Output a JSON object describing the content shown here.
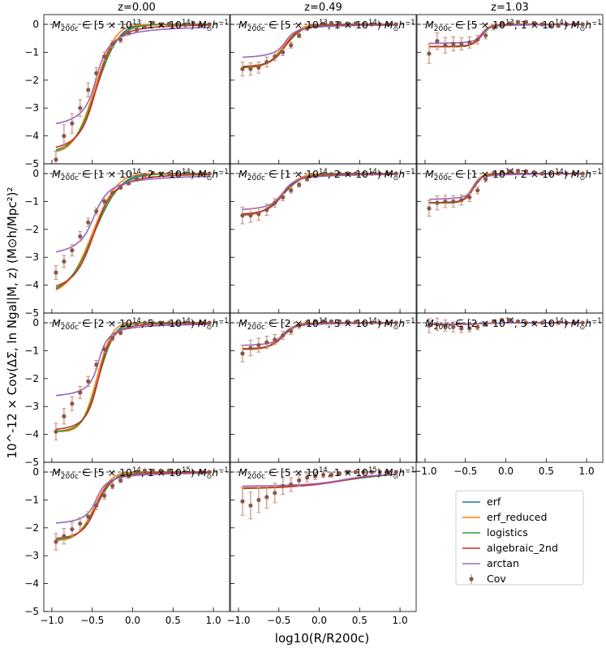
{
  "chart_data": {
    "type": "line",
    "xlabel": "log10(R/R200c)",
    "ylabel": "10^-12 × Cov(ΔΣ, ln Ngal|M, z) (M⊙h/Mpc²)²",
    "xlim": [
      -1.1,
      1.2
    ],
    "ylim": [
      -5,
      0.35
    ],
    "xticks": [
      -1.0,
      -0.5,
      0.0,
      0.5,
      1.0
    ],
    "xtick_labels": [
      "−1.0",
      "−0.5",
      "0.0",
      "0.5",
      "1.0"
    ],
    "yticks": [
      -5,
      -4,
      -3,
      -2,
      -1,
      0
    ],
    "ytick_labels": [
      "−5",
      "−4",
      "−3",
      "−2",
      "−1",
      "0"
    ],
    "reference_line_y": 0,
    "grid": false,
    "legend_position": "bottom-right",
    "columns": [
      "z=0.00",
      "z=0.49",
      "z=1.03"
    ],
    "series_meta": [
      {
        "name": "erf",
        "color": "#1f77b4"
      },
      {
        "name": "erf_reduced",
        "color": "#ff7f0e"
      },
      {
        "name": "logistics",
        "color": "#2ca02c"
      },
      {
        "name": "algebraic_2nd",
        "color": "#d62728"
      },
      {
        "name": "arctan",
        "color": "#9467bd"
      }
    ],
    "points_meta": {
      "name": "Cov",
      "color": "#8c564b",
      "errcolor": "#c8907a"
    },
    "x": [
      -0.95,
      -0.85,
      -0.75,
      -0.65,
      -0.55,
      -0.45,
      -0.35,
      -0.25,
      -0.15,
      -0.05,
      0.05,
      0.15,
      0.25,
      0.35,
      0.45,
      0.55,
      0.65,
      0.75,
      0.85,
      0.95
    ],
    "panels": [
      {
        "row": 0,
        "col": 0,
        "label": "M200c ∈ [5×10^13, 1×10^14) M⊙h^-1",
        "label_parts": [
          "5",
          "13",
          "1",
          "14"
        ],
        "A": -4.6,
        "x0": -0.45,
        "w": 0.22,
        "points": [
          -4.85,
          -4.0,
          -3.55,
          -3.0,
          -2.35,
          -1.75,
          -1.15,
          -0.7,
          -0.55,
          -0.3,
          -0.2,
          -0.1,
          0.05,
          0.0,
          0.02,
          0.0,
          -0.02,
          0.05,
          -0.02,
          0.0
        ],
        "errors": [
          0.3,
          0.4,
          0.35,
          0.3,
          0.25,
          0.2,
          0.15,
          0.12,
          0.1,
          0.08,
          0.07,
          0.06,
          0.05,
          0.05,
          0.05,
          0.04,
          0.04,
          0.04,
          0.04,
          0.04
        ],
        "arctan_floor": -3.85
      },
      {
        "row": 0,
        "col": 1,
        "label": "M200c ∈ [5×10^13, 1×10^14) M⊙h^-1",
        "label_parts": [
          "5",
          "13",
          "1",
          "14"
        ],
        "A": -1.55,
        "x0": -0.42,
        "w": 0.18,
        "points": [
          -1.6,
          -1.6,
          -1.55,
          -1.35,
          -1.15,
          -1.0,
          -0.75,
          -0.4,
          -0.15,
          -0.05,
          0.02,
          0.05,
          0.05,
          0.03,
          0.03,
          0.01,
          0.0,
          0.0,
          0.0,
          0.0
        ],
        "errors": [
          0.25,
          0.22,
          0.2,
          0.18,
          0.15,
          0.12,
          0.1,
          0.08,
          0.06,
          0.05,
          0.05,
          0.04,
          0.04,
          0.03,
          0.03,
          0.03,
          0.03,
          0.03,
          0.03,
          0.03
        ],
        "arctan_floor": -1.25
      },
      {
        "row": 0,
        "col": 2,
        "label": "M200c ∈ [5×10^13, 1×10^14) M⊙h^-1",
        "label_parts": [
          "5",
          "13",
          "1",
          "14"
        ],
        "A": -0.8,
        "x0": -0.3,
        "w": 0.1,
        "points": [
          -1.05,
          -0.6,
          -0.75,
          -0.7,
          -0.7,
          -0.65,
          -0.55,
          -0.4,
          -0.1,
          0.0,
          0.02,
          0.08,
          0.08,
          0.05,
          0.0,
          -0.05,
          -0.05,
          0.0,
          0.0,
          0.0
        ],
        "errors": [
          0.35,
          0.3,
          0.28,
          0.25,
          0.22,
          0.2,
          0.15,
          0.12,
          0.1,
          0.08,
          0.07,
          0.06,
          0.06,
          0.05,
          0.05,
          0.05,
          0.05,
          0.05,
          0.05,
          0.05
        ],
        "arctan_floor": -0.7
      },
      {
        "row": 1,
        "col": 0,
        "label": "M200c ∈ [1×10^14, 2×10^14) M⊙h^-1",
        "label_parts": [
          "1",
          "14",
          "2",
          "14"
        ],
        "A": -4.3,
        "x0": -0.48,
        "w": 0.26,
        "points": [
          -3.55,
          -3.15,
          -2.75,
          -2.25,
          -1.75,
          -1.35,
          -1.0,
          -0.7,
          -0.5,
          -0.35,
          -0.2,
          -0.05,
          0.02,
          0.0,
          0.0,
          0.0,
          0.0,
          0.0,
          0.0,
          0.0
        ],
        "errors": [
          0.25,
          0.22,
          0.2,
          0.18,
          0.15,
          0.12,
          0.1,
          0.08,
          0.06,
          0.05,
          0.05,
          0.04,
          0.04,
          0.03,
          0.03,
          0.03,
          0.03,
          0.03,
          0.03,
          0.03
        ],
        "arctan_floor": -3.1
      },
      {
        "row": 1,
        "col": 1,
        "label": "M200c ∈ [1×10^14, 2×10^14) M⊙h^-1",
        "label_parts": [
          "1",
          "14",
          "2",
          "14"
        ],
        "A": -1.5,
        "x0": -0.45,
        "w": 0.2,
        "points": [
          -1.5,
          -1.5,
          -1.45,
          -1.3,
          -1.05,
          -0.85,
          -0.6,
          -0.4,
          -0.2,
          -0.08,
          -0.03,
          -0.02,
          0.0,
          0.0,
          0.0,
          0.0,
          0.0,
          0.0,
          0.0,
          0.0
        ],
        "errors": [
          0.3,
          0.25,
          0.22,
          0.2,
          0.15,
          0.12,
          0.1,
          0.08,
          0.06,
          0.05,
          0.05,
          0.04,
          0.04,
          0.03,
          0.03,
          0.03,
          0.03,
          0.03,
          0.03,
          0.03
        ],
        "arctan_floor": -1.38
      },
      {
        "row": 1,
        "col": 2,
        "label": "M200c ∈ [1×10^14, 2×10^14) M⊙h^-1",
        "label_parts": [
          "1",
          "14",
          "2",
          "14"
        ],
        "A": -1.05,
        "x0": -0.4,
        "w": 0.1,
        "points": [
          -1.25,
          -1.05,
          -1.0,
          -1.0,
          -0.95,
          -0.85,
          -0.6,
          -0.2,
          0.0,
          0.05,
          0.08,
          0.1,
          0.08,
          0.05,
          0.0,
          0.0,
          0.0,
          0.0,
          0.0,
          0.0
        ],
        "errors": [
          0.28,
          0.25,
          0.22,
          0.2,
          0.18,
          0.15,
          0.12,
          0.1,
          0.08,
          0.06,
          0.05,
          0.05,
          0.05,
          0.04,
          0.04,
          0.04,
          0.04,
          0.04,
          0.04,
          0.04
        ],
        "arctan_floor": -0.95
      },
      {
        "row": 2,
        "col": 0,
        "label": "M200c ∈ [2×10^14, 5×10^14) M⊙h^-1",
        "label_parts": [
          "2",
          "14",
          "5",
          "14"
        ],
        "A": -3.9,
        "x0": -0.42,
        "w": 0.16,
        "points": [
          -3.9,
          -3.35,
          -2.9,
          -2.5,
          -2.1,
          -1.5,
          -0.95,
          -0.55,
          -0.35,
          -0.15,
          -0.05,
          0.0,
          0.0,
          0.0,
          0.0,
          0.0,
          0.0,
          0.0,
          0.0,
          0.0
        ],
        "errors": [
          0.3,
          0.28,
          0.25,
          0.22,
          0.18,
          0.15,
          0.12,
          0.1,
          0.08,
          0.06,
          0.05,
          0.04,
          0.04,
          0.03,
          0.03,
          0.03,
          0.03,
          0.03,
          0.03,
          0.03
        ],
        "arctan_floor": -2.75
      },
      {
        "row": 2,
        "col": 1,
        "label": "M200c ∈ [2×10^14, 5×10^14) M⊙h^-1",
        "label_parts": [
          "2",
          "14",
          "5",
          "14"
        ],
        "A": -0.95,
        "x0": -0.45,
        "w": 0.15,
        "points": [
          -1.1,
          -0.9,
          -0.8,
          -0.7,
          -0.6,
          -0.45,
          -0.3,
          -0.1,
          0.0,
          0.05,
          0.05,
          0.05,
          0.05,
          0.05,
          0.03,
          0.0,
          0.0,
          0.0,
          0.0,
          0.0
        ],
        "errors": [
          0.3,
          0.28,
          0.25,
          0.22,
          0.18,
          0.15,
          0.12,
          0.1,
          0.08,
          0.06,
          0.05,
          0.05,
          0.05,
          0.04,
          0.04,
          0.04,
          0.04,
          0.04,
          0.04,
          0.04
        ],
        "arctan_floor": -0.85
      },
      {
        "row": 2,
        "col": 2,
        "label": "M200c ∈ [2×10^14, 5×10^14) M⊙h^-1",
        "label_parts": [
          "2",
          "14",
          "5",
          "14"
        ],
        "A": -0.06,
        "x0": -0.3,
        "w": 0.2,
        "points": [
          -0.1,
          -0.05,
          -0.1,
          -0.15,
          -0.2,
          -0.2,
          -0.15,
          -0.05,
          0.05,
          0.1,
          0.1,
          0.05,
          0.0,
          0.0,
          0.0,
          0.0,
          0.0,
          0.0,
          0.0,
          0.0
        ],
        "errors": [
          0.25,
          0.22,
          0.2,
          0.18,
          0.15,
          0.12,
          0.1,
          0.08,
          0.06,
          0.05,
          0.05,
          0.04,
          0.04,
          0.03,
          0.03,
          0.03,
          0.03,
          0.03,
          0.03,
          0.03
        ],
        "arctan_floor": -0.05
      },
      {
        "row": 3,
        "col": 0,
        "label": "M200c ∈ [5×10^14, 1×10^15) M⊙h^-1",
        "label_parts": [
          "5",
          "14",
          "1",
          "15"
        ],
        "A": -2.45,
        "x0": -0.45,
        "w": 0.18,
        "points": [
          -2.5,
          -2.3,
          -2.05,
          -1.85,
          -1.6,
          -1.2,
          -0.85,
          -0.5,
          -0.3,
          -0.15,
          0.0,
          0.05,
          0.05,
          0.05,
          0.05,
          0.0,
          0.0,
          0.0,
          0.0,
          0.0
        ],
        "errors": [
          0.3,
          0.28,
          0.25,
          0.22,
          0.18,
          0.15,
          0.12,
          0.1,
          0.08,
          0.06,
          0.05,
          0.05,
          0.05,
          0.04,
          0.04,
          0.04,
          0.04,
          0.04,
          0.04,
          0.04
        ],
        "arctan_floor": -1.95
      },
      {
        "row": 3,
        "col": 1,
        "label": "M200c ∈ [5×10^14, 1×10^15) M⊙h^-1",
        "label_parts": [
          "5",
          "14",
          "1",
          "15"
        ],
        "A": -0.6,
        "x0": 0.3,
        "w": 0.6,
        "points": [
          -1.05,
          -1.2,
          -1.0,
          -0.9,
          -0.75,
          -0.5,
          -0.45,
          -0.3,
          -0.2,
          -0.15,
          -0.1,
          -0.1,
          -0.05,
          0.0,
          0.0,
          0.0,
          0.0,
          0.0,
          0.0,
          0.0
        ],
        "errors": [
          0.5,
          0.48,
          0.45,
          0.4,
          0.35,
          0.3,
          0.25,
          0.2,
          0.15,
          0.12,
          0.1,
          0.08,
          0.06,
          0.05,
          0.05,
          0.05,
          0.05,
          0.05,
          0.05,
          0.05
        ],
        "arctan_floor": -0.55
      }
    ]
  }
}
